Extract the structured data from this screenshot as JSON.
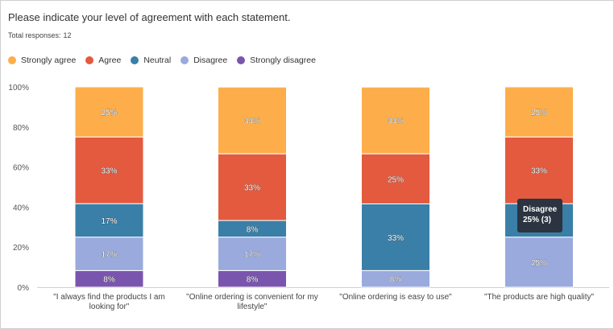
{
  "question": "Please indicate your level of agreement with each statement.",
  "total_label": "Total responses:",
  "total_count": "12",
  "colors": {
    "strongly_agree": "#fdae4b",
    "agree": "#e35a3f",
    "neutral": "#3a7fa8",
    "disagree": "#9aaadd",
    "strongly_disagree": "#7a55ad"
  },
  "tooltip": {
    "title": "Disagree",
    "value": "25% (3)"
  },
  "chart_data": {
    "type": "bar",
    "stacked": true,
    "y_ticks": [
      "0%",
      "20%",
      "40%",
      "60%",
      "80%",
      "100%"
    ],
    "ylim": [
      0,
      100
    ],
    "grid": false,
    "legend_position": "top-left",
    "categories": [
      [
        "\"I always find the products I am",
        "looking for\""
      ],
      [
        "\"Online ordering is convenient for my",
        "lifestyle\""
      ],
      [
        "\"Online ordering is easy to use\""
      ],
      [
        "\"The products are high quality\""
      ]
    ],
    "series": [
      {
        "name": "Strongly agree",
        "color": "#fdae4b",
        "values": [
          25,
          33.3,
          33.3,
          25
        ],
        "labels": [
          "25%",
          "33%",
          "33%",
          "25%"
        ]
      },
      {
        "name": "Agree",
        "color": "#e35a3f",
        "values": [
          33.3,
          33.3,
          25,
          33.3
        ],
        "labels": [
          "33%",
          "33%",
          "25%",
          "33%"
        ]
      },
      {
        "name": "Neutral",
        "color": "#3a7fa8",
        "values": [
          16.7,
          8.3,
          33.3,
          16.7
        ],
        "labels": [
          "17%",
          "8%",
          "33%",
          "17%"
        ]
      },
      {
        "name": "Disagree",
        "color": "#9aaadd",
        "values": [
          16.7,
          16.7,
          8.3,
          25
        ],
        "labels": [
          "17%",
          "17%",
          "8%",
          "25%"
        ]
      },
      {
        "name": "Strongly disagree",
        "color": "#7a55ad",
        "values": [
          8.3,
          8.3,
          0,
          0
        ],
        "labels": [
          "8%",
          "8%",
          "",
          ""
        ]
      }
    ]
  }
}
